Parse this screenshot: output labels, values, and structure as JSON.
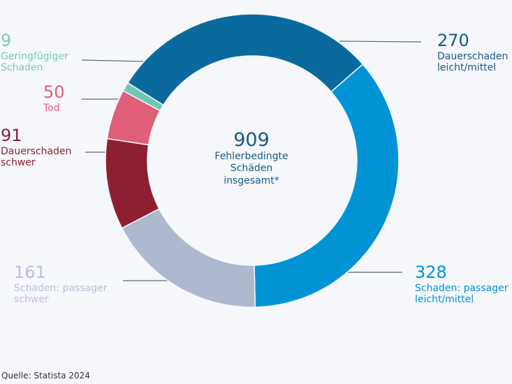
{
  "chart_data": {
    "type": "pie",
    "total": "909",
    "center_label": "Fehlerbedingte\nSchäden\ninsgesamt*",
    "slices": [
      {
        "value": 270,
        "label": "Dauerschaden\nleicht/mittel",
        "color": "#0a6a9e"
      },
      {
        "value": 328,
        "label": "Schaden: passager\nleicht/mittel",
        "color": "#0293d6"
      },
      {
        "value": 161,
        "label": "Schaden: passager\nschwer",
        "color": "#aeb9cd"
      },
      {
        "value": 91,
        "label": "Dauerschaden\nschwer",
        "color": "#8e1f32"
      },
      {
        "value": 50,
        "label": "Tod",
        "color": "#df5f79"
      },
      {
        "value": 9,
        "label": "Geringfügiger\nSchaden",
        "color": "#6fc8b4"
      }
    ],
    "label_colors": [
      "#1a5a85",
      "#0293d6",
      "#b8c1d4",
      "#8e1f32",
      "#df5f79",
      "#7ccbb6"
    ]
  },
  "source": {
    "label": "Quelle:",
    "value": "Statista 2024"
  }
}
